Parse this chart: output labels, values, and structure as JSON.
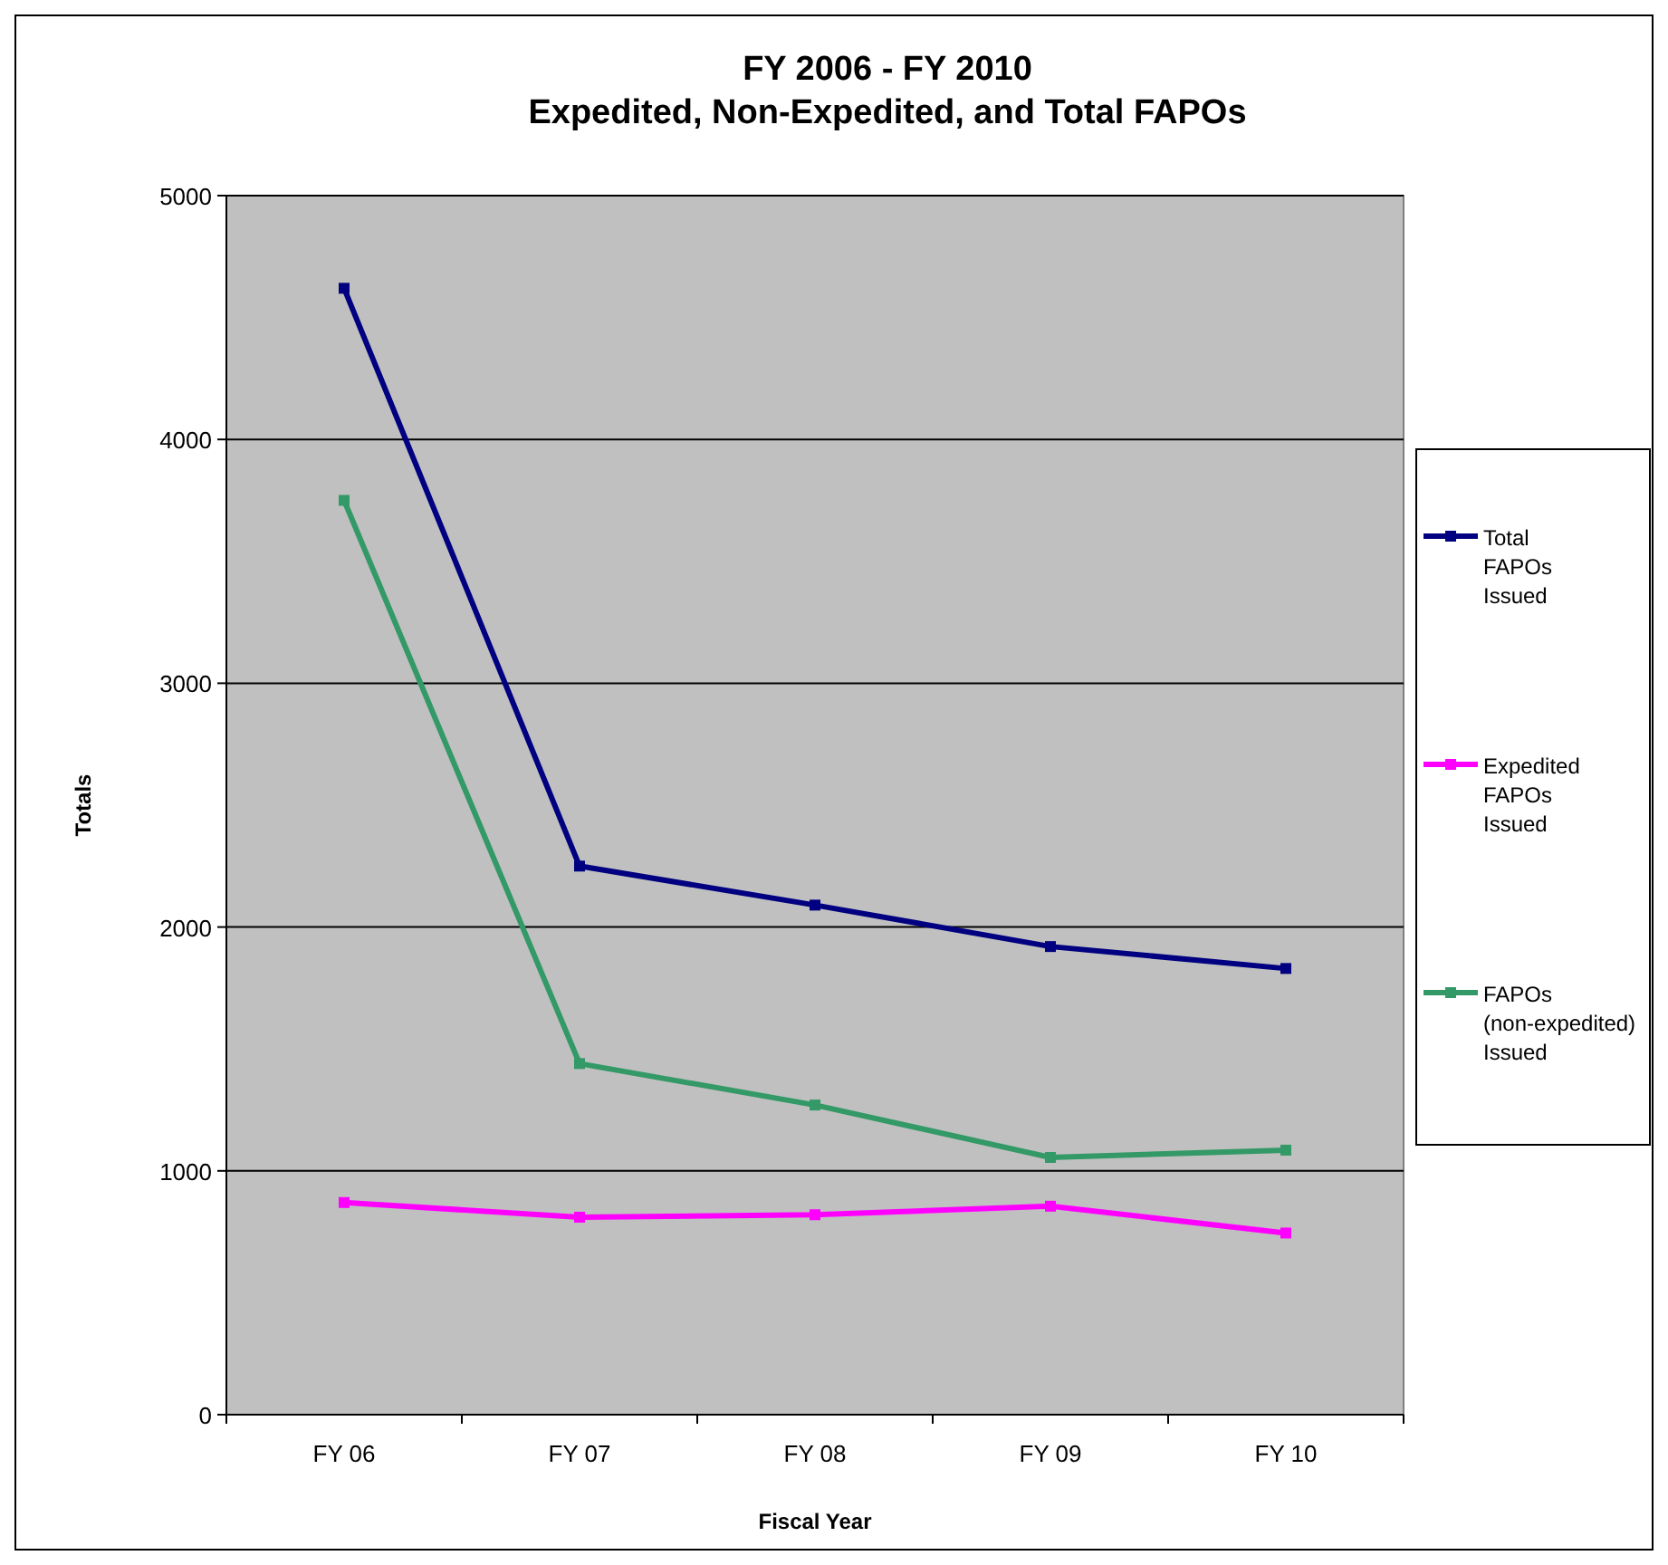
{
  "chart_data": {
    "type": "line",
    "title": "FY 2006 - FY 2010\nExpedited, Non-Expedited, and Total FAPOs",
    "xlabel": "Fiscal Year",
    "ylabel": "Totals",
    "categories": [
      "FY 06",
      "FY 07",
      "FY 08",
      "FY 09",
      "FY 10"
    ],
    "series": [
      {
        "name": "Total FAPOs Issued",
        "color": "#000080",
        "values": [
          4620,
          2250,
          2090,
          1920,
          1830
        ]
      },
      {
        "name": "Expedited FAPOs Issued",
        "color": "#ff00ff",
        "values": [
          870,
          810,
          820,
          855,
          745
        ]
      },
      {
        "name": "FAPOs (non-expedited) Issued",
        "color": "#339966",
        "values": [
          3750,
          1440,
          1270,
          1055,
          1085
        ]
      }
    ],
    "ylim": [
      0,
      5000
    ],
    "yticks": [
      0,
      1000,
      2000,
      3000,
      4000,
      5000
    ],
    "grid": "y",
    "legend": "right",
    "marker": "square",
    "line_style": "solid"
  }
}
